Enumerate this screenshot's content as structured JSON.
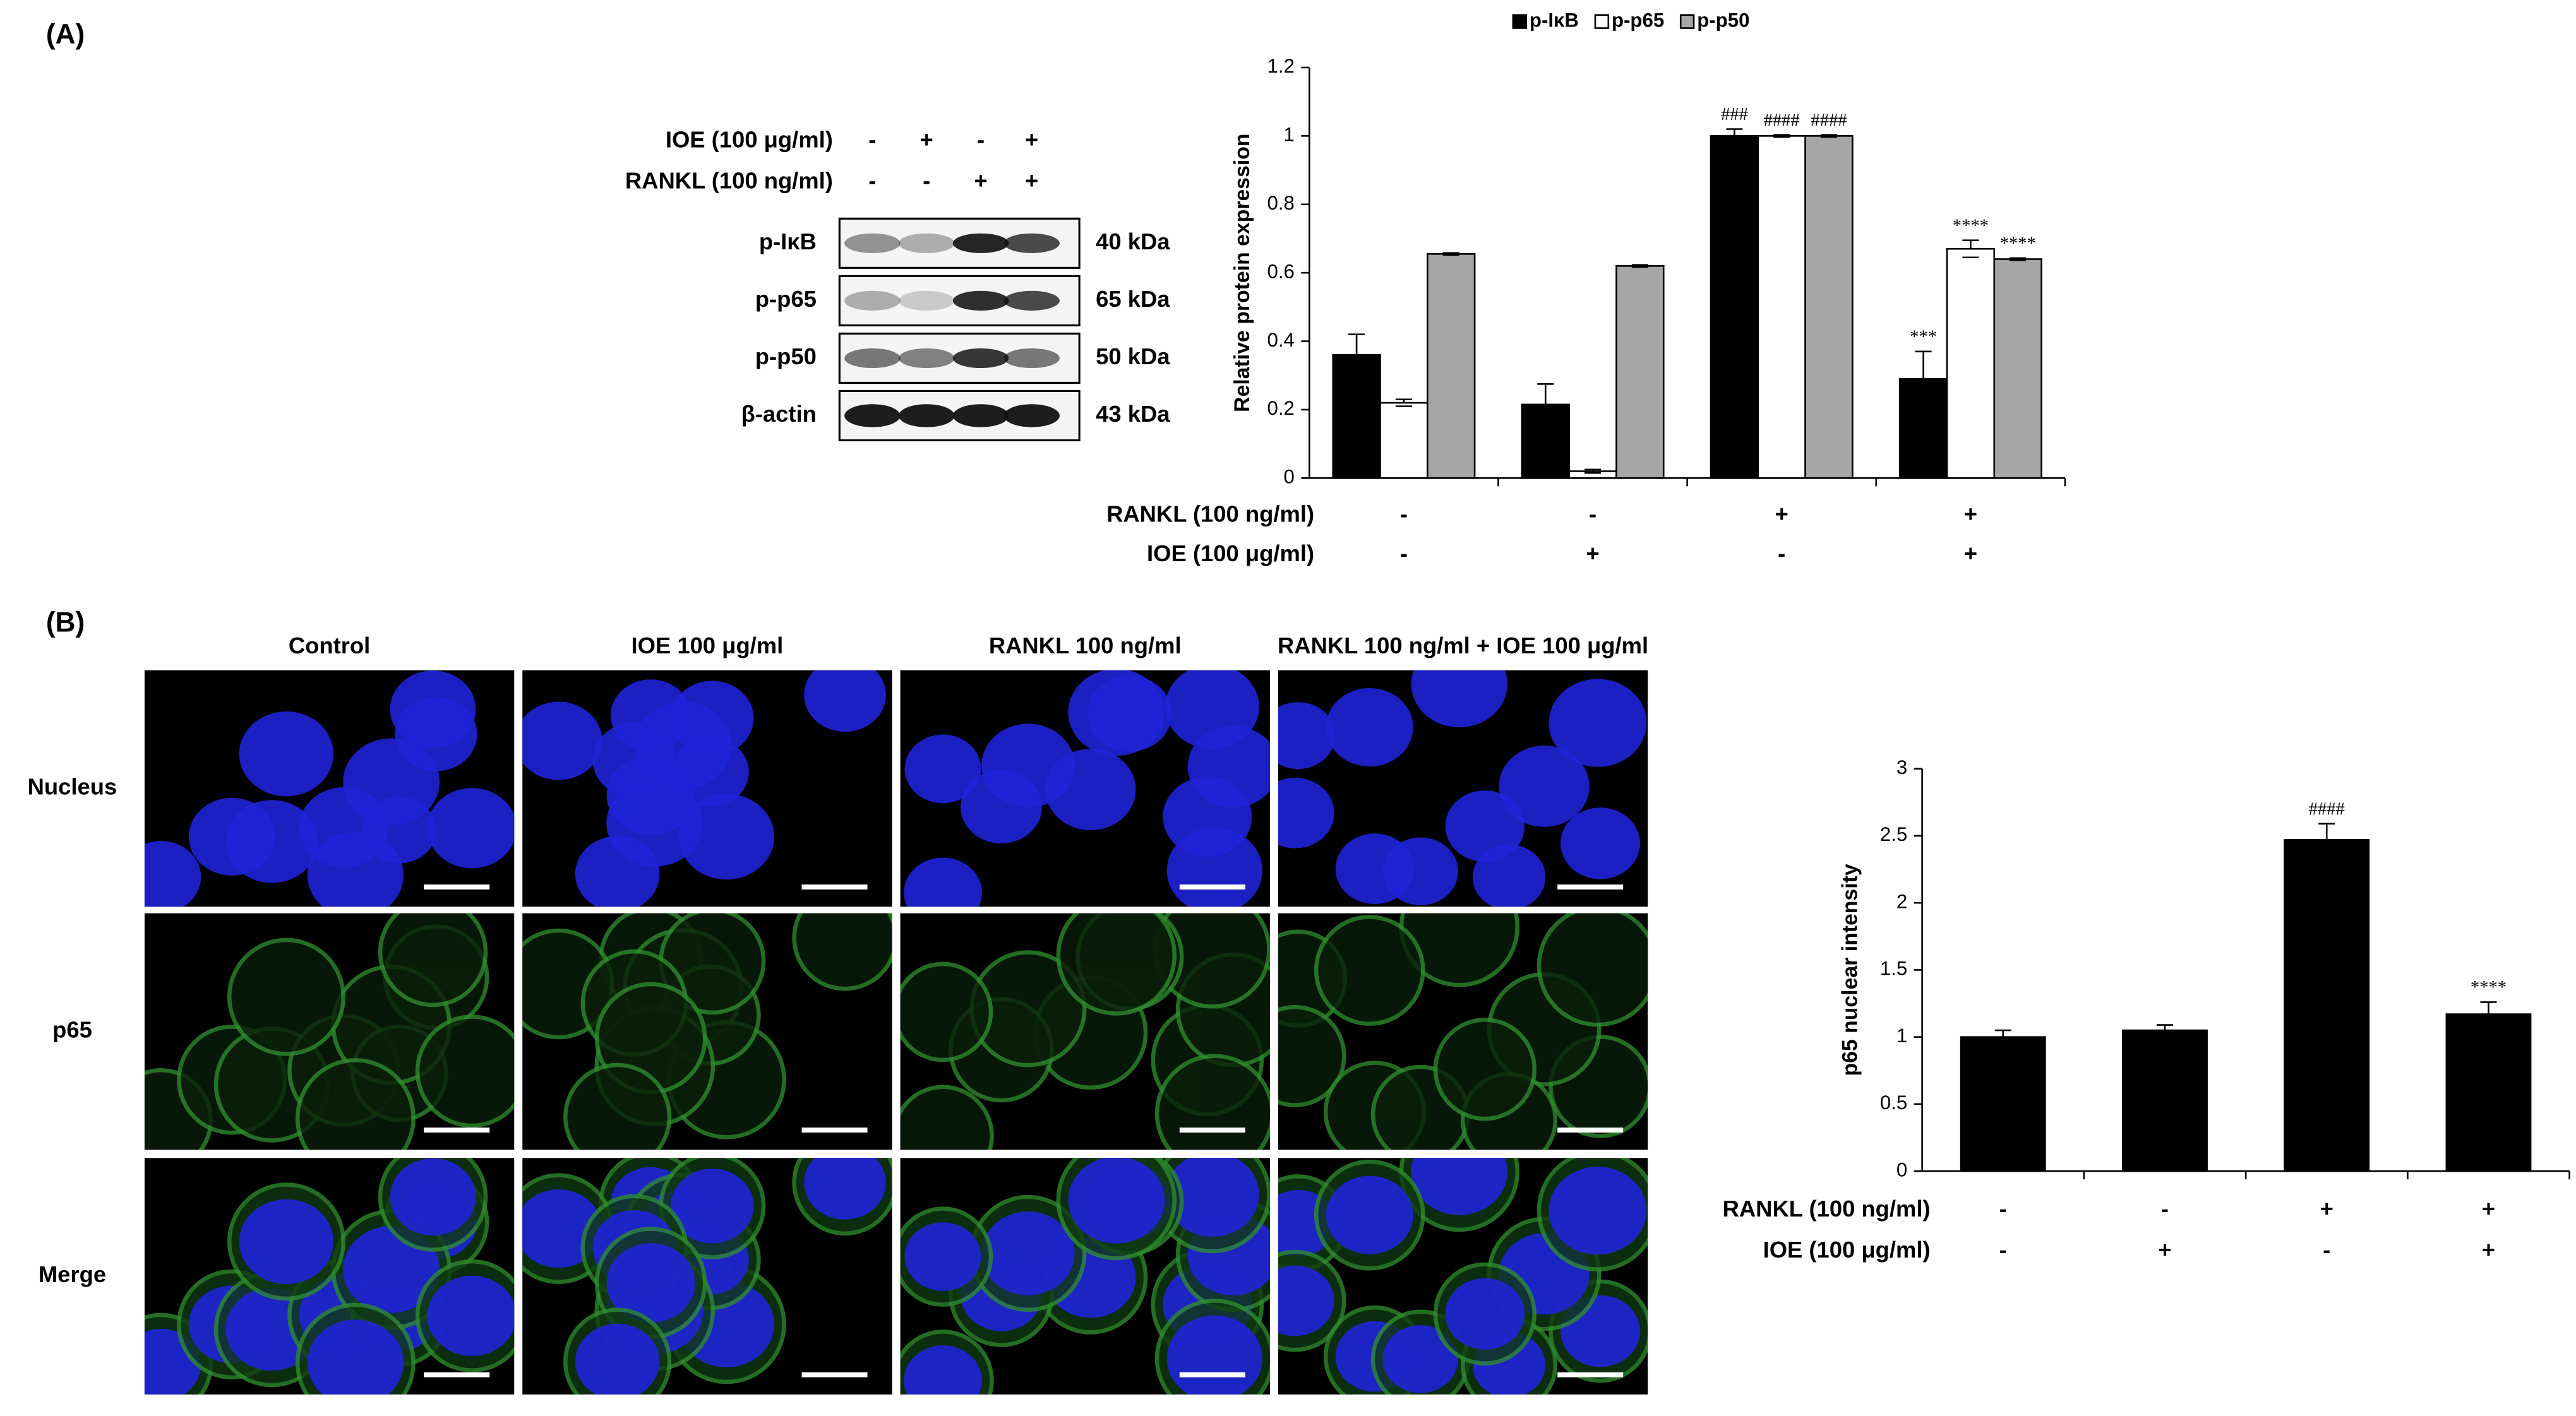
{
  "panel_labels": [
    "(A)",
    "(B)"
  ],
  "blot": {
    "treatments": [
      {
        "label": "IOE (100 μg/ml)",
        "values": [
          "-",
          "+",
          "-",
          "+"
        ]
      },
      {
        "label": "RANKL (100 ng/ml)",
        "values": [
          "-",
          "-",
          "+",
          "+"
        ]
      }
    ],
    "bands": [
      {
        "label": "p-IκB",
        "size": "40 kDa"
      },
      {
        "label": "p-p65",
        "size": "65 kDa"
      },
      {
        "label": "p-p50",
        "size": "50 kDa"
      },
      {
        "label": "β-actin",
        "size": "43 kDa"
      }
    ]
  },
  "microscopy": {
    "columns": [
      "Control",
      "IOE 100 μg/ml",
      "RANKL 100 ng/ml",
      "RANKL 100 ng/ml + IOE 100 μg/ml"
    ],
    "rows": [
      "Nucleus",
      "p65",
      "Merge"
    ]
  },
  "chart_data": [
    {
      "type": "bar",
      "y_label": "Relative protein expression",
      "categories": [
        null,
        null,
        null,
        null
      ],
      "series": [
        {
          "name": "p-IκB",
          "color": "#000000",
          "values": [
            0.36,
            0.215,
            1.0,
            0.29
          ],
          "errors": [
            0.06,
            0.06,
            0.02,
            0.08
          ],
          "annotations": [
            null,
            null,
            "###",
            "***"
          ]
        },
        {
          "name": "p-p65",
          "color": "#ffffff",
          "values": [
            0.22,
            0.02,
            1.0,
            0.67
          ],
          "errors": [
            0.01,
            0.005,
            0.003,
            0.025
          ],
          "annotations": [
            null,
            null,
            "####",
            "****"
          ]
        },
        {
          "name": "p-p50",
          "color": "#a6a6a6",
          "values": [
            0.655,
            0.62,
            1.0,
            0.64
          ],
          "errors": [
            0.003,
            0.003,
            0.003,
            0.003
          ],
          "annotations": [
            null,
            null,
            "####",
            "****"
          ]
        }
      ],
      "ylim": [
        0,
        1.2
      ],
      "yticks": [
        0,
        0.2,
        0.4,
        0.6,
        0.8,
        1,
        1.2
      ],
      "legend": "top",
      "conditions": [
        {
          "label": "RANKL (100 ng/ml)",
          "values": [
            "-",
            "-",
            "+",
            "+"
          ]
        },
        {
          "label": "IOE (100 μg/ml)",
          "values": [
            "-",
            "+",
            "-",
            "+"
          ]
        }
      ]
    },
    {
      "type": "bar",
      "y_label": "p65 nuclear intensity",
      "categories": [
        null,
        null,
        null,
        null
      ],
      "values": [
        1.0,
        1.05,
        2.47,
        1.17
      ],
      "errors": [
        0.05,
        0.04,
        0.12,
        0.09
      ],
      "annotations": [
        null,
        null,
        "####",
        "****"
      ],
      "color": "#000000",
      "ylim": [
        0,
        3
      ],
      "yticks": [
        0,
        0.5,
        1,
        1.5,
        2,
        2.5,
        3
      ],
      "conditions": [
        {
          "label": "RANKL (100 ng/ml)",
          "values": [
            "-",
            "-",
            "+",
            "+"
          ]
        },
        {
          "label": "IOE (100 μg/ml)",
          "values": [
            "-",
            "+",
            "-",
            "+"
          ]
        }
      ]
    }
  ]
}
